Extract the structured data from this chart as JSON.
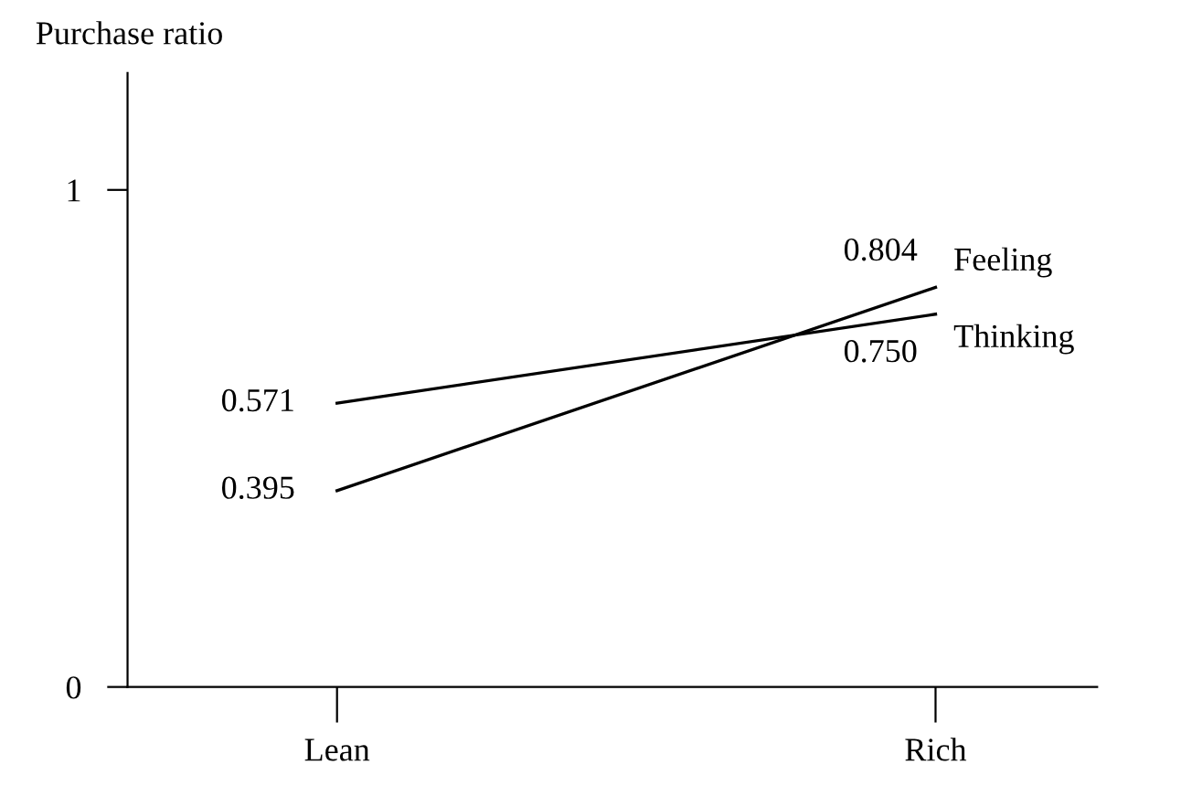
{
  "chart_data": {
    "type": "line",
    "ylabel": "Purchase ratio",
    "categories": [
      "Lean",
      "Rich"
    ],
    "series": [
      {
        "name": "Thinking",
        "color": "#000000",
        "values": [
          0.571,
          0.75
        ],
        "value_labels": [
          "0.571",
          "0.750"
        ]
      },
      {
        "name": "Feeling",
        "color": "#000000",
        "values": [
          0.395,
          0.804
        ],
        "value_labels": [
          "0.395",
          "0.804"
        ]
      }
    ],
    "ylim": [
      0,
      1.235
    ],
    "yticks": [
      0,
      1
    ],
    "legend": false,
    "grid": false,
    "marker": "none",
    "line_style": "solid"
  }
}
